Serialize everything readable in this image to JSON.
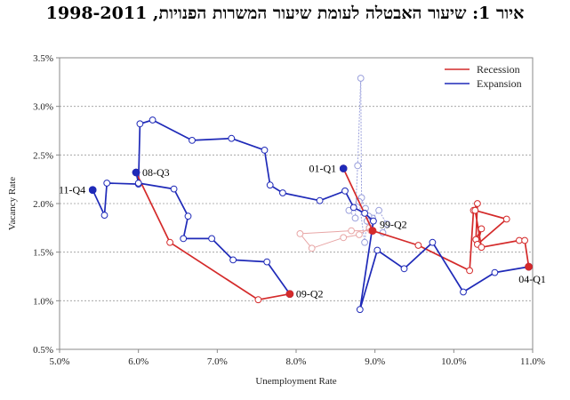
{
  "title": "איור 1: שיעור האבטלה לעומת שיעור המשרות הפנויות, 1998-2011",
  "chart_data": {
    "type": "scatter",
    "title": "איור 1: שיעור האבטלה לעומת שיעור המשרות הפנויות, 1998-2011",
    "xlabel": "Unemployment Rate",
    "ylabel": "Vacancy Rate",
    "xlim": [
      5.0,
      11.0
    ],
    "ylim": [
      0.5,
      3.5
    ],
    "xticks": [
      "5.0%",
      "6.0%",
      "7.0%",
      "8.0%",
      "9.0%",
      "10.0%",
      "11.0%"
    ],
    "yticks": [
      "0.5%",
      "1.0%",
      "1.5%",
      "2.0%",
      "2.5%",
      "3.0%",
      "3.5%"
    ],
    "grid": "horizontal",
    "legend_position": "top-right",
    "legend": [
      "Recession",
      "Expansion"
    ],
    "colors": {
      "recession": "#d42a2a",
      "recession_light": "#e8a6a6",
      "expansion": "#1f2ab8",
      "expansion_light": "#9aa0dc"
    },
    "series": [
      {
        "style": "expansion",
        "points": [
          [
            9.1,
            1.7
          ],
          [
            9.15,
            1.79
          ],
          [
            9.05,
            1.93
          ],
          [
            8.97,
            1.85
          ],
          [
            8.92,
            1.87
          ],
          [
            8.88,
            1.95
          ],
          [
            8.83,
            2.06
          ],
          [
            8.82,
            3.29
          ],
          [
            8.78,
            2.39
          ],
          [
            8.75,
            1.85
          ],
          [
            8.67,
            1.93
          ],
          [
            8.8,
            2.02
          ],
          [
            8.87,
            1.6
          ],
          [
            8.9,
            1.82
          ],
          [
            8.93,
            1.75
          ]
        ],
        "light": true
      },
      {
        "style": "recession",
        "points": [
          [
            8.93,
            1.75
          ],
          [
            8.8,
            1.68
          ],
          [
            8.6,
            1.65
          ],
          [
            8.2,
            1.54
          ],
          [
            8.05,
            1.69
          ],
          [
            8.7,
            1.72
          ],
          [
            8.95,
            1.72
          ]
        ],
        "light": true
      },
      {
        "style": "recession",
        "points": [
          [
            8.6,
            2.36
          ],
          [
            8.97,
            1.72
          ],
          [
            9.55,
            1.57
          ],
          [
            10.2,
            1.31
          ],
          [
            10.25,
            1.93
          ],
          [
            10.3,
            2.0
          ],
          [
            10.28,
            1.63
          ],
          [
            10.35,
            1.74
          ],
          [
            10.3,
            1.58
          ],
          [
            10.67,
            1.84
          ],
          [
            10.27,
            1.93
          ],
          [
            10.35,
            1.55
          ],
          [
            10.83,
            1.62
          ],
          [
            10.9,
            1.62
          ],
          [
            10.95,
            1.35
          ]
        ]
      },
      {
        "style": "expansion",
        "points": [
          [
            10.95,
            1.35
          ],
          [
            10.52,
            1.29
          ],
          [
            10.12,
            1.09
          ],
          [
            9.73,
            1.6
          ],
          [
            9.37,
            1.33
          ],
          [
            9.03,
            1.52
          ],
          [
            8.81,
            0.91
          ],
          [
            8.98,
            1.82
          ],
          [
            8.87,
            1.9
          ],
          [
            8.73,
            1.96
          ],
          [
            8.62,
            2.13
          ],
          [
            8.3,
            2.03
          ],
          [
            7.83,
            2.11
          ],
          [
            7.67,
            2.19
          ],
          [
            7.6,
            2.55
          ],
          [
            7.18,
            2.67
          ],
          [
            6.68,
            2.65
          ],
          [
            6.18,
            2.86
          ],
          [
            6.02,
            2.82
          ],
          [
            6.0,
            2.2
          ],
          [
            5.6,
            2.21
          ],
          [
            5.57,
            1.88
          ],
          [
            5.42,
            2.14
          ]
        ]
      },
      {
        "style": "recession",
        "points": [
          [
            5.97,
            2.32
          ],
          [
            6.4,
            1.6
          ],
          [
            7.52,
            1.01
          ],
          [
            7.92,
            1.07
          ]
        ]
      },
      {
        "style": "expansion",
        "points": [
          [
            7.92,
            1.07
          ],
          [
            7.63,
            1.4
          ],
          [
            7.2,
            1.42
          ],
          [
            6.93,
            1.64
          ],
          [
            6.57,
            1.64
          ],
          [
            6.63,
            1.87
          ],
          [
            6.45,
            2.15
          ],
          [
            6.0,
            2.21
          ],
          [
            5.97,
            2.32
          ]
        ]
      }
    ],
    "annotations": [
      {
        "label": "11-Q4",
        "x": 5.42,
        "y": 2.14,
        "style": "expansion",
        "anchor": "left"
      },
      {
        "label": "08-Q3",
        "x": 5.97,
        "y": 2.32,
        "style": "expansion",
        "anchor": "right"
      },
      {
        "label": "09-Q2",
        "x": 7.92,
        "y": 1.07,
        "style": "recession",
        "anchor": "right"
      },
      {
        "label": "01-Q1",
        "x": 8.6,
        "y": 2.36,
        "style": "expansion",
        "anchor": "left"
      },
      {
        "label": "99-Q2",
        "x": 8.97,
        "y": 1.72,
        "style": "recession",
        "anchor": "right-up"
      },
      {
        "label": "04-Q1",
        "x": 10.95,
        "y": 1.35,
        "style": "recession",
        "anchor": "below"
      }
    ]
  }
}
